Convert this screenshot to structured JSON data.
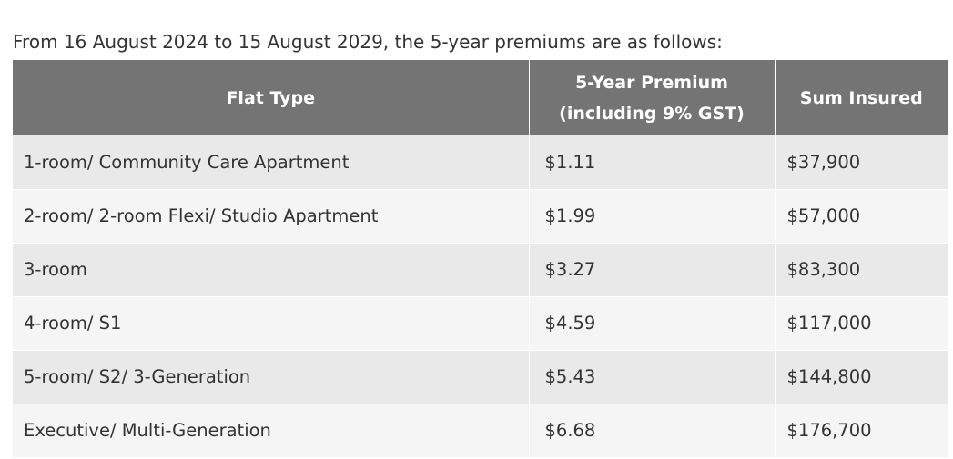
{
  "intro_text": "From 16 August 2024 to 15 August 2029, the 5-year premiums are as follows:",
  "table": {
    "headers": {
      "flat_type": "Flat Type",
      "premium_line1": "5-Year Premium",
      "premium_line2": "(including 9% GST)",
      "sum_insured": "Sum Insured"
    },
    "rows": [
      {
        "flat_type": "1-room/ Community Care Apartment",
        "premium": "$1.11",
        "sum_insured": "$37,900"
      },
      {
        "flat_type": "2-room/ 2-room Flexi/ Studio Apartment",
        "premium": "$1.99",
        "sum_insured": "$57,000"
      },
      {
        "flat_type": "3-room",
        "premium": "$3.27",
        "sum_insured": "$83,300"
      },
      {
        "flat_type": "4-room/ S1",
        "premium": "$4.59",
        "sum_insured": "$117,000"
      },
      {
        "flat_type": "5-room/ S2/ 3-Generation",
        "premium": "$5.43",
        "sum_insured": "$144,800"
      },
      {
        "flat_type": "Executive/ Multi-Generation",
        "premium": "$6.68",
        "sum_insured": "$176,700"
      }
    ]
  },
  "colors": {
    "header_bg": "#747474",
    "row_odd_bg": "#e9e9e9",
    "row_even_bg": "#f5f5f5",
    "text": "#333333"
  }
}
